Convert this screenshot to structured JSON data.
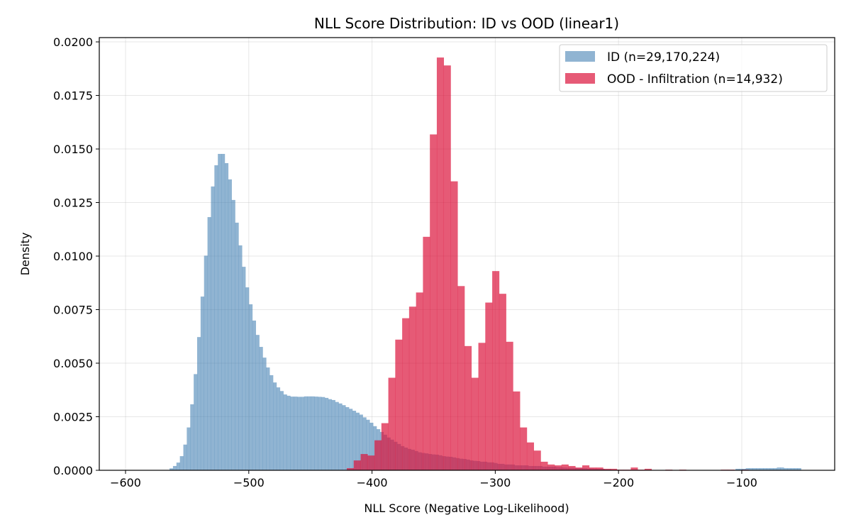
{
  "chart_data": {
    "type": "bar",
    "title": "NLL Score Distribution: ID vs OOD (linear1)",
    "xlabel": "NLL Score (Negative Log-Likelihood)",
    "ylabel": "Density",
    "xlim": [
      -621.3,
      -24.6
    ],
    "ylim": [
      0,
      0.0202
    ],
    "grid": true,
    "legend_position": "top-right",
    "x_ticks": [
      -600,
      -500,
      -400,
      -300,
      -200,
      -100
    ],
    "x_tick_labels": [
      "−600",
      "−500",
      "−400",
      "−300",
      "−200",
      "−100"
    ],
    "y_ticks": [
      0,
      0.0025,
      0.005,
      0.0075,
      0.01,
      0.0125,
      0.015,
      0.0175,
      0.02
    ],
    "y_tick_labels": [
      "0.0000",
      "0.0025",
      "0.0050",
      "0.0075",
      "0.0100",
      "0.0125",
      "0.0150",
      "0.0175",
      "0.0200"
    ],
    "series": [
      {
        "name": "ID (n=29,170,224)",
        "color": "#4682b4",
        "opacity": 0.6,
        "bin_start": -564.3,
        "bin_width": 2.8,
        "values": [
          9e-05,
          0.0002,
          0.00036,
          0.00066,
          0.0012,
          0.002,
          0.00308,
          0.00449,
          0.00622,
          0.00811,
          0.01002,
          0.01182,
          0.01325,
          0.01424,
          0.01477,
          0.01477,
          0.01434,
          0.01358,
          0.01262,
          0.01156,
          0.0105,
          0.0095,
          0.00854,
          0.00775,
          0.00699,
          0.00632,
          0.00576,
          0.00526,
          0.0048,
          0.00444,
          0.0041,
          0.00387,
          0.0037,
          0.00354,
          0.00348,
          0.00344,
          0.00344,
          0.00343,
          0.00343,
          0.00345,
          0.00345,
          0.00345,
          0.00344,
          0.00343,
          0.00342,
          0.00338,
          0.00332,
          0.00328,
          0.00319,
          0.00312,
          0.00304,
          0.00295,
          0.00287,
          0.00278,
          0.00269,
          0.0026,
          0.00247,
          0.00236,
          0.00222,
          0.00206,
          0.00192,
          0.00179,
          0.00166,
          0.00153,
          0.00143,
          0.00133,
          0.00123,
          0.00113,
          0.00106,
          0.001,
          0.00096,
          0.0009,
          0.00084,
          0.00081,
          0.00079,
          0.00076,
          0.00074,
          0.00073,
          0.0007,
          0.00066,
          0.00064,
          0.00063,
          0.0006,
          0.00057,
          0.00054,
          0.00053,
          0.0005,
          0.00046,
          0.00044,
          0.00043,
          0.0004,
          0.0004,
          0.00037,
          0.00037,
          0.00034,
          0.0003,
          0.0003,
          0.00027,
          0.00027,
          0.00027,
          0.00023,
          0.00023,
          0.00023,
          0.00023,
          0.0002,
          0.0002,
          0.0002,
          0.0002,
          0.00017,
          0.00017,
          0.00017,
          0.00017,
          0.00015,
          0.00014,
          0.00013,
          0.00012,
          0.00012,
          0.00011,
          0.0001,
          0.0001,
          0.0001,
          8e-05,
          8e-05,
          7e-05,
          7e-05,
          7e-05,
          4e-05,
          4e-05,
          0,
          0,
          0,
          0,
          0,
          0,
          0,
          0,
          0,
          0,
          0,
          0,
          0,
          0,
          0,
          0,
          0,
          0,
          0,
          0,
          0,
          0,
          0,
          0,
          0,
          0,
          0,
          0,
          0,
          0,
          0,
          0,
          0,
          0,
          0,
          0,
          7e-05,
          7e-05,
          7e-05,
          0.0001,
          0.0001,
          0.0001,
          0.0001,
          0.0001,
          0.0001,
          0.0001,
          0.0001,
          0.0001,
          0.00013,
          0.00013,
          0.0001,
          0.0001,
          0.0001,
          0.0001,
          0.0001
        ]
      },
      {
        "name": "OOD - Infiltration (n=14,932)",
        "color": "#dc143c",
        "opacity": 0.7,
        "bin_start": -420.5,
        "bin_width": 5.62,
        "values": [
          0.0001,
          0.00046,
          0.00076,
          0.00069,
          0.0014,
          0.0022,
          0.00432,
          0.0061,
          0.0071,
          0.00764,
          0.0083,
          0.0109,
          0.01568,
          0.01927,
          0.0189,
          0.01349,
          0.0086,
          0.0058,
          0.00432,
          0.00595,
          0.00783,
          0.0093,
          0.00824,
          0.006,
          0.00368,
          0.002,
          0.0013,
          0.00092,
          0.0004,
          0.00027,
          0.00023,
          0.00027,
          0.0002,
          0.00013,
          0.00023,
          0.00013,
          0.00013,
          7e-05,
          7e-05,
          3e-05,
          3e-05,
          0.00013,
          3e-05,
          7e-05,
          0,
          0,
          3e-05,
          0,
          3e-05,
          0,
          0,
          0,
          0,
          0,
          3e-05,
          3e-05,
          0,
          3e-05
        ]
      }
    ]
  }
}
